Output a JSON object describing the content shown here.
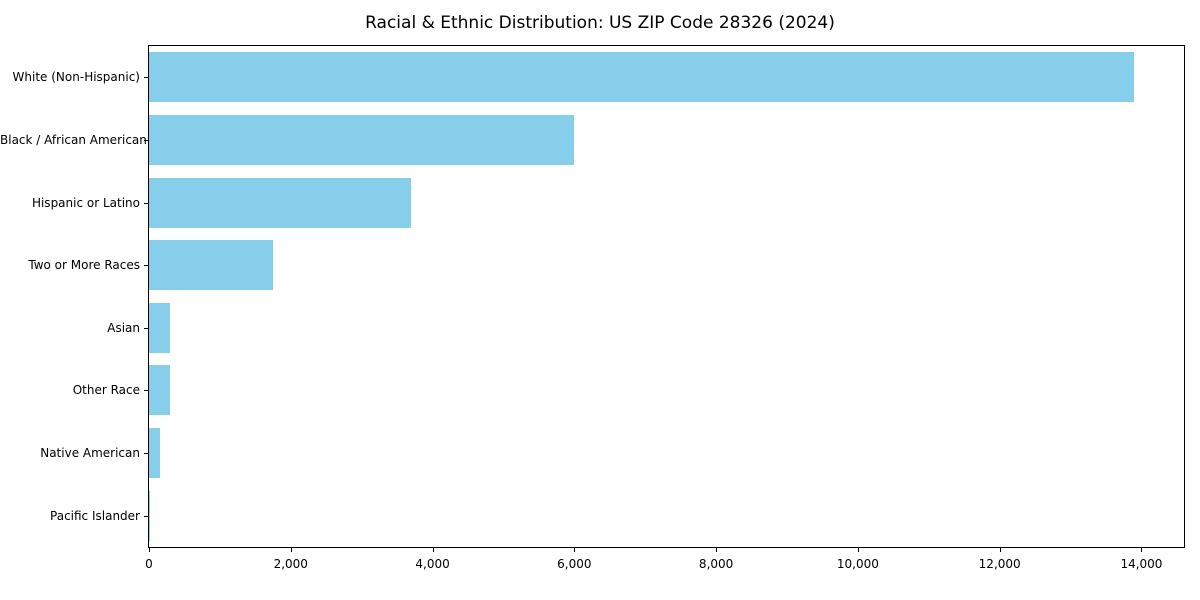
{
  "chart_data": {
    "type": "bar",
    "orientation": "horizontal",
    "title": "Racial & Ethnic Distribution: US ZIP Code 28326 (2024)",
    "categories": [
      "White (Non-Hispanic)",
      "Black / African American",
      "Hispanic or Latino",
      "Two or More Races",
      "Asian",
      "Other Race",
      "Native American",
      "Pacific Islander"
    ],
    "values": [
      13900,
      6000,
      3700,
      1750,
      300,
      290,
      150,
      10
    ],
    "bar_color": "#87CEEB",
    "xlabel": "",
    "ylabel": "",
    "xlim": [
      0,
      14600
    ],
    "x_ticks": [
      {
        "value": 0,
        "label": "0"
      },
      {
        "value": 2000,
        "label": "2,000"
      },
      {
        "value": 4000,
        "label": "4,000"
      },
      {
        "value": 6000,
        "label": "6,000"
      },
      {
        "value": 8000,
        "label": "8,000"
      },
      {
        "value": 10000,
        "label": "10,000"
      },
      {
        "value": 12000,
        "label": "12,000"
      },
      {
        "value": 14000,
        "label": "14,000"
      }
    ],
    "grid": false,
    "legend_position": "none"
  }
}
